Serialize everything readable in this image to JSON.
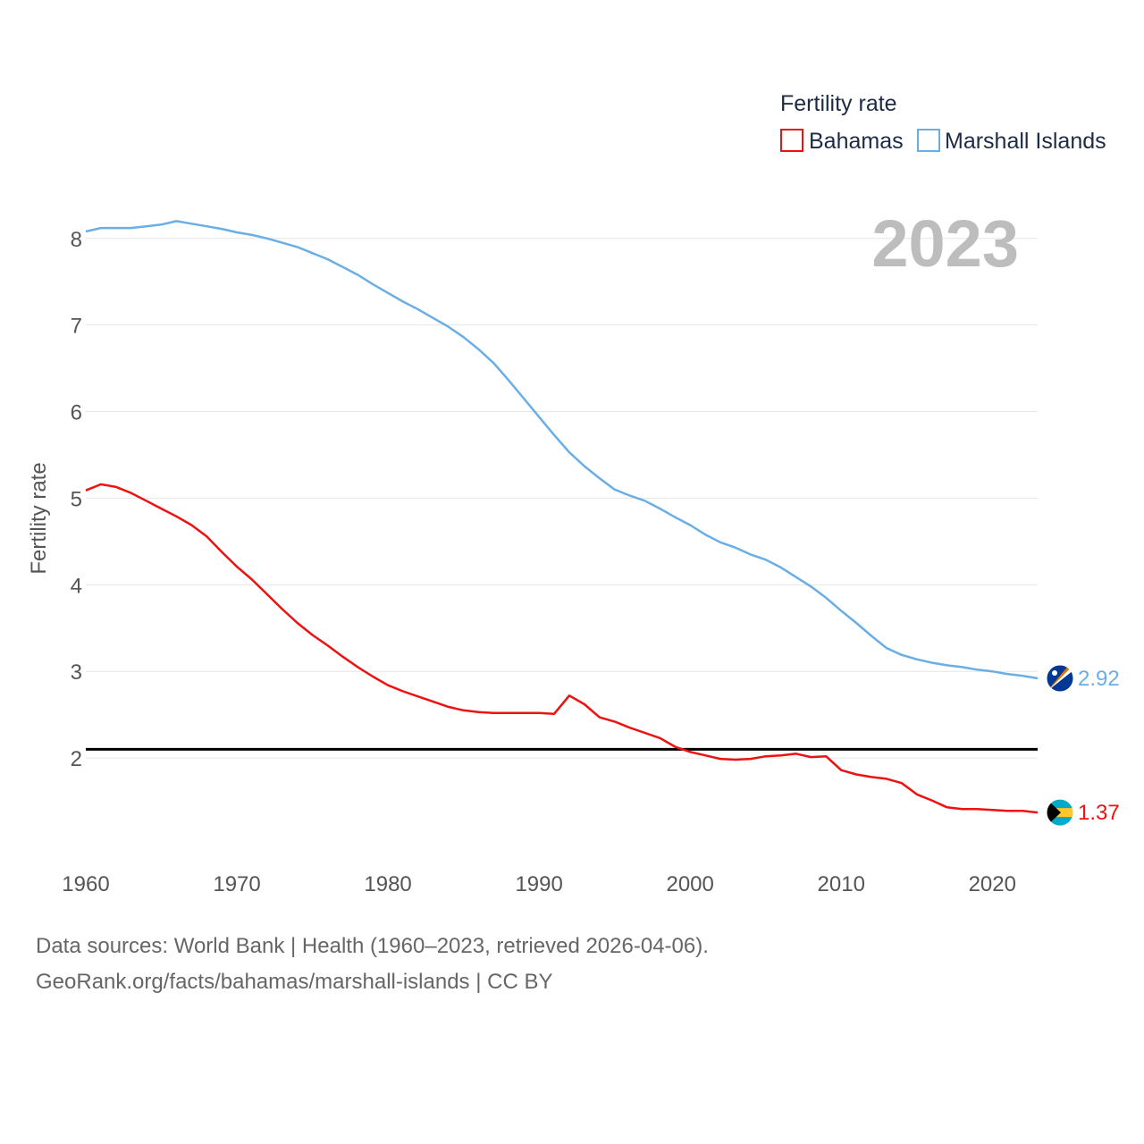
{
  "chart_data": {
    "type": "line",
    "ylabel": "Fertility rate",
    "xlabel": "",
    "xlim": [
      1960,
      2023
    ],
    "ylim": [
      1.0,
      8.4
    ],
    "x_ticks": [
      1960,
      1970,
      1980,
      1990,
      2000,
      2010,
      2020
    ],
    "y_ticks": [
      2,
      3,
      4,
      5,
      6,
      7,
      8
    ],
    "reference_line": 2.1,
    "year_label": "2023",
    "legend": {
      "title": "Fertility rate",
      "placement": "top-right"
    },
    "x": [
      1960,
      1961,
      1962,
      1963,
      1964,
      1965,
      1966,
      1967,
      1968,
      1969,
      1970,
      1971,
      1972,
      1973,
      1974,
      1975,
      1976,
      1977,
      1978,
      1979,
      1980,
      1981,
      1982,
      1983,
      1984,
      1985,
      1986,
      1987,
      1988,
      1989,
      1990,
      1991,
      1992,
      1993,
      1994,
      1995,
      1996,
      1997,
      1998,
      1999,
      2000,
      2001,
      2002,
      2003,
      2004,
      2005,
      2006,
      2007,
      2008,
      2009,
      2010,
      2011,
      2012,
      2013,
      2014,
      2015,
      2016,
      2017,
      2018,
      2019,
      2020,
      2021,
      2022,
      2023
    ],
    "series": [
      {
        "name": "Bahamas",
        "color": "#ee1111",
        "end_label": "1.37",
        "flag": "bahamas-flag",
        "values": [
          5.09,
          5.16,
          5.13,
          5.06,
          4.97,
          4.88,
          4.79,
          4.69,
          4.56,
          4.38,
          4.21,
          4.06,
          3.89,
          3.72,
          3.56,
          3.42,
          3.3,
          3.17,
          3.05,
          2.94,
          2.84,
          2.77,
          2.71,
          2.65,
          2.59,
          2.55,
          2.53,
          2.52,
          2.52,
          2.52,
          2.52,
          2.51,
          2.72,
          2.62,
          2.47,
          2.42,
          2.35,
          2.29,
          2.23,
          2.13,
          2.07,
          2.03,
          1.99,
          1.98,
          1.99,
          2.02,
          2.03,
          2.05,
          2.01,
          2.02,
          1.86,
          1.81,
          1.78,
          1.76,
          1.71,
          1.58,
          1.51,
          1.43,
          1.41,
          1.41,
          1.4,
          1.39,
          1.39,
          1.37
        ]
      },
      {
        "name": "Marshall Islands",
        "color": "#6aaee6",
        "end_label": "2.92",
        "flag": "marshall-islands-flag",
        "values": [
          8.08,
          8.12,
          8.12,
          8.12,
          8.14,
          8.16,
          8.2,
          8.17,
          8.14,
          8.11,
          8.07,
          8.04,
          8.0,
          7.95,
          7.9,
          7.83,
          7.76,
          7.67,
          7.58,
          7.47,
          7.37,
          7.27,
          7.18,
          7.08,
          6.98,
          6.86,
          6.72,
          6.56,
          6.36,
          6.15,
          5.94,
          5.73,
          5.53,
          5.37,
          5.23,
          5.1,
          5.03,
          4.97,
          4.88,
          4.78,
          4.69,
          4.58,
          4.49,
          4.43,
          4.35,
          4.29,
          4.2,
          4.09,
          3.98,
          3.85,
          3.7,
          3.56,
          3.41,
          3.27,
          3.19,
          3.14,
          3.1,
          3.07,
          3.05,
          3.02,
          3.0,
          2.97,
          2.95,
          2.92
        ]
      }
    ]
  },
  "source": {
    "line1": "Data sources: World Bank | Health (1960–2023, retrieved 2026-04-06).",
    "line2": "GeoRank.org/facts/bahamas/marshall-islands | CC BY"
  }
}
